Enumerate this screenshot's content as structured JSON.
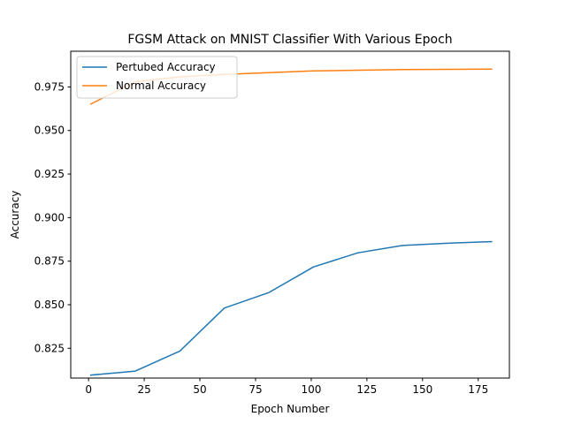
{
  "chart_data": {
    "type": "line",
    "title": "FGSM Attack on MNIST Classifier With Various Epoch",
    "xlabel": "Epoch Number",
    "ylabel": "Accuracy",
    "xlim": [
      -8,
      189
    ],
    "ylim": [
      0.8079,
      0.9955
    ],
    "x_ticks": [
      0,
      25,
      50,
      75,
      100,
      125,
      150,
      175
    ],
    "y_ticks": [
      0.825,
      0.85,
      0.875,
      0.9,
      0.925,
      0.95,
      0.975
    ],
    "x_tick_labels": [
      "0",
      "25",
      "50",
      "75",
      "100",
      "125",
      "150",
      "175"
    ],
    "y_tick_labels": [
      "0.825",
      "0.850",
      "0.875",
      "0.900",
      "0.925",
      "0.950",
      "0.975"
    ],
    "grid": false,
    "legend_position": "upper-left",
    "x": [
      1,
      21,
      41,
      61,
      81,
      101,
      121,
      141,
      161,
      181
    ],
    "series": [
      {
        "name": "Pertubed Accuracy",
        "color": "#1f77b4",
        "values": [
          0.8096,
          0.8119,
          0.8234,
          0.8481,
          0.857,
          0.8717,
          0.8798,
          0.884,
          0.8853,
          0.8862
        ]
      },
      {
        "name": "Normal Accuracy",
        "color": "#ff7f0e",
        "values": [
          0.9652,
          0.978,
          0.9808,
          0.9822,
          0.9832,
          0.9842,
          0.9846,
          0.985,
          0.9851,
          0.9852
        ]
      }
    ]
  }
}
